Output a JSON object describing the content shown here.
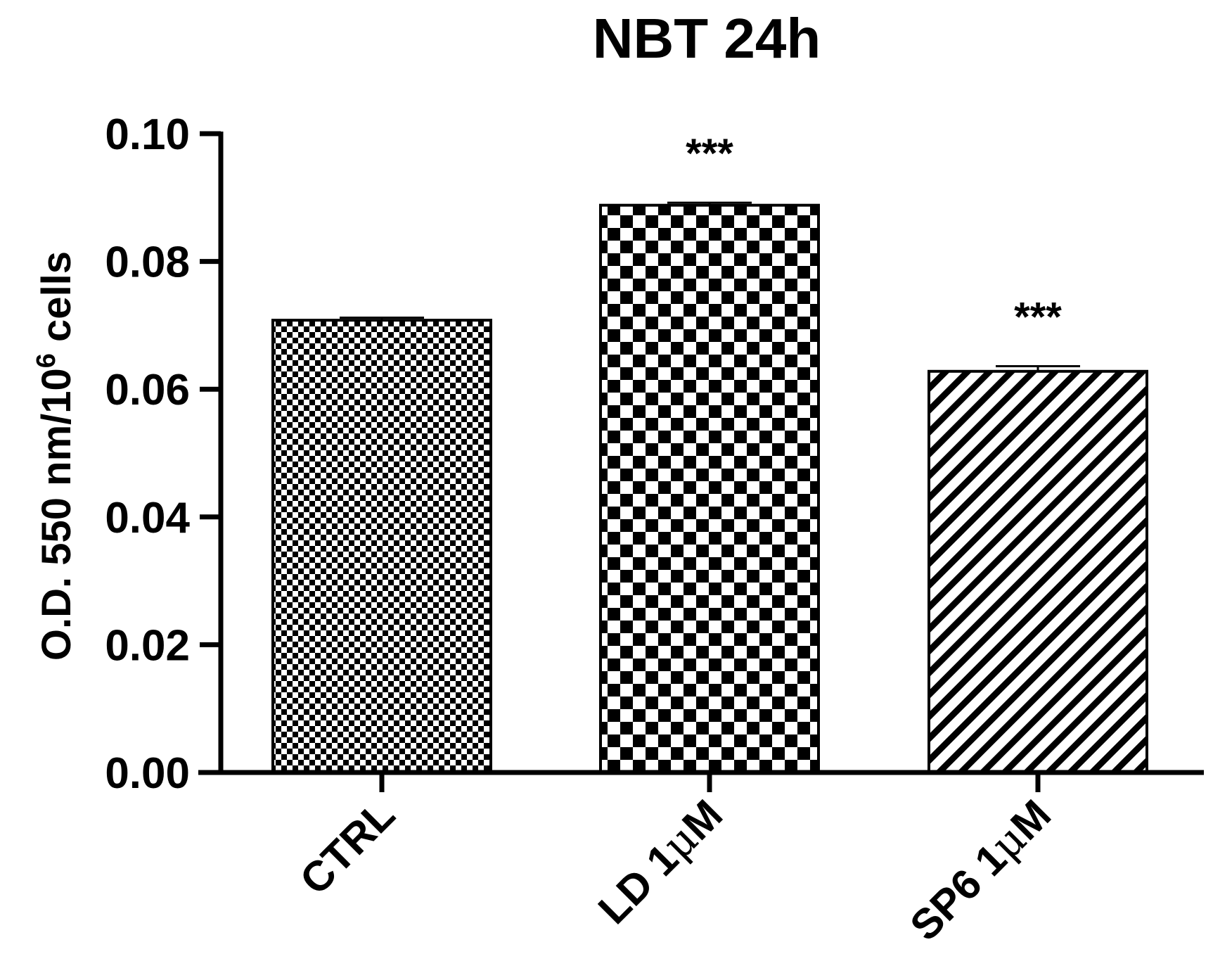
{
  "chart_data": {
    "type": "bar",
    "title": "NBT 24h",
    "ylabel": {
      "prefix": "O.D. 550 nm/10",
      "superscript": "6",
      "suffix": " cells"
    },
    "xlabel": "",
    "ylim": [
      0,
      0.1
    ],
    "yticks": [
      "0.00",
      "0.02",
      "0.04",
      "0.06",
      "0.08",
      "0.10"
    ],
    "categories": [
      {
        "label_main": "CTRL",
        "label_mu": "",
        "label_tail": ""
      },
      {
        "label_main": "LD 1",
        "label_mu": "μ",
        "label_tail": "M"
      },
      {
        "label_main": "SP6 1",
        "label_mu": "μ",
        "label_tail": "M"
      }
    ],
    "values": [
      0.0708,
      0.0888,
      0.0628
    ],
    "error": [
      0.0004,
      0.0004,
      0.0008
    ],
    "patterns": [
      "fine-checker",
      "coarse-checker",
      "diagonal-hatch"
    ],
    "annotations": [
      "",
      "***",
      "***"
    ],
    "grid": false,
    "legend": "none"
  },
  "colors": {
    "bar_fill": "#000000",
    "bar_bg": "#ffffff",
    "axis": "#000000",
    "text": "#000000"
  }
}
